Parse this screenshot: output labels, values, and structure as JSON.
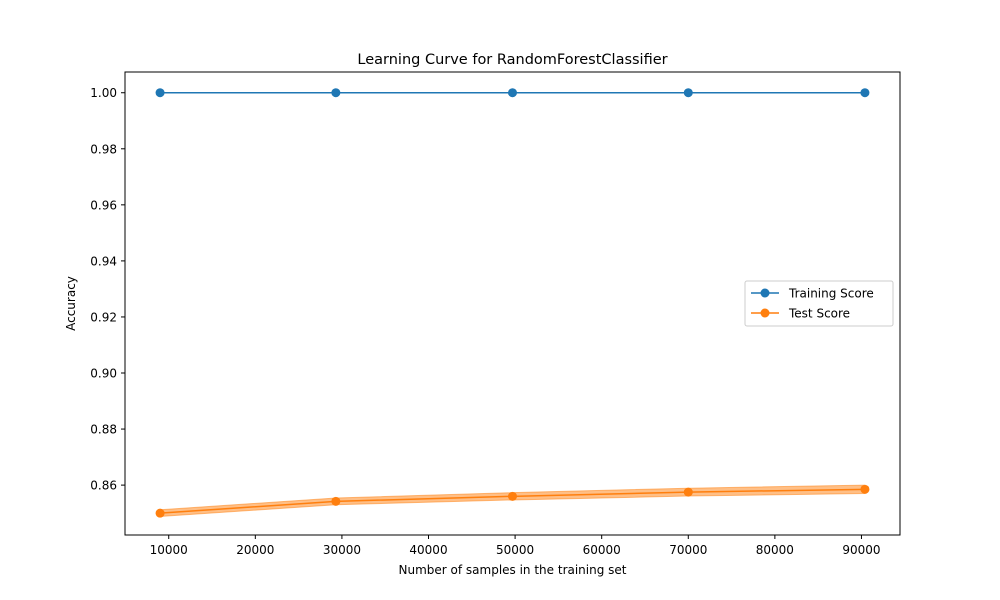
{
  "chart_data": {
    "type": "line",
    "title": "Learning Curve for RandomForestClassifier",
    "xlabel": "Number of samples in the training set",
    "ylabel": "Accuracy",
    "xlim": [
      4950,
      94450
    ],
    "ylim": [
      0.8422,
      1.0074
    ],
    "x_ticks": [
      10000,
      20000,
      30000,
      40000,
      50000,
      60000,
      70000,
      80000,
      90000
    ],
    "y_ticks": [
      0.86,
      0.88,
      0.9,
      0.92,
      0.94,
      0.96,
      0.98,
      1.0
    ],
    "x_tick_labels": [
      "10000",
      "20000",
      "30000",
      "40000",
      "50000",
      "60000",
      "70000",
      "80000",
      "90000"
    ],
    "y_tick_labels": [
      "0.86",
      "0.88",
      "0.90",
      "0.92",
      "0.94",
      "0.96",
      "0.98",
      "1.00"
    ],
    "grid": false,
    "legend_position": "center-right",
    "x": [
      9000,
      29300,
      49700,
      70000,
      90400
    ],
    "series": [
      {
        "name": "Training Score",
        "color": "#1f77b4",
        "values": [
          1.0,
          1.0,
          1.0,
          1.0,
          1.0
        ],
        "band_lower": [
          1.0,
          1.0,
          1.0,
          1.0,
          1.0
        ],
        "band_upper": [
          1.0,
          1.0,
          1.0,
          1.0,
          1.0
        ]
      },
      {
        "name": "Test Score",
        "color": "#ff7f0e",
        "values": [
          0.85,
          0.8542,
          0.856,
          0.8575,
          0.8585
        ],
        "band_lower": [
          0.8488,
          0.853,
          0.8547,
          0.8561,
          0.857
        ],
        "band_upper": [
          0.8512,
          0.8554,
          0.8573,
          0.8589,
          0.86
        ]
      }
    ]
  }
}
